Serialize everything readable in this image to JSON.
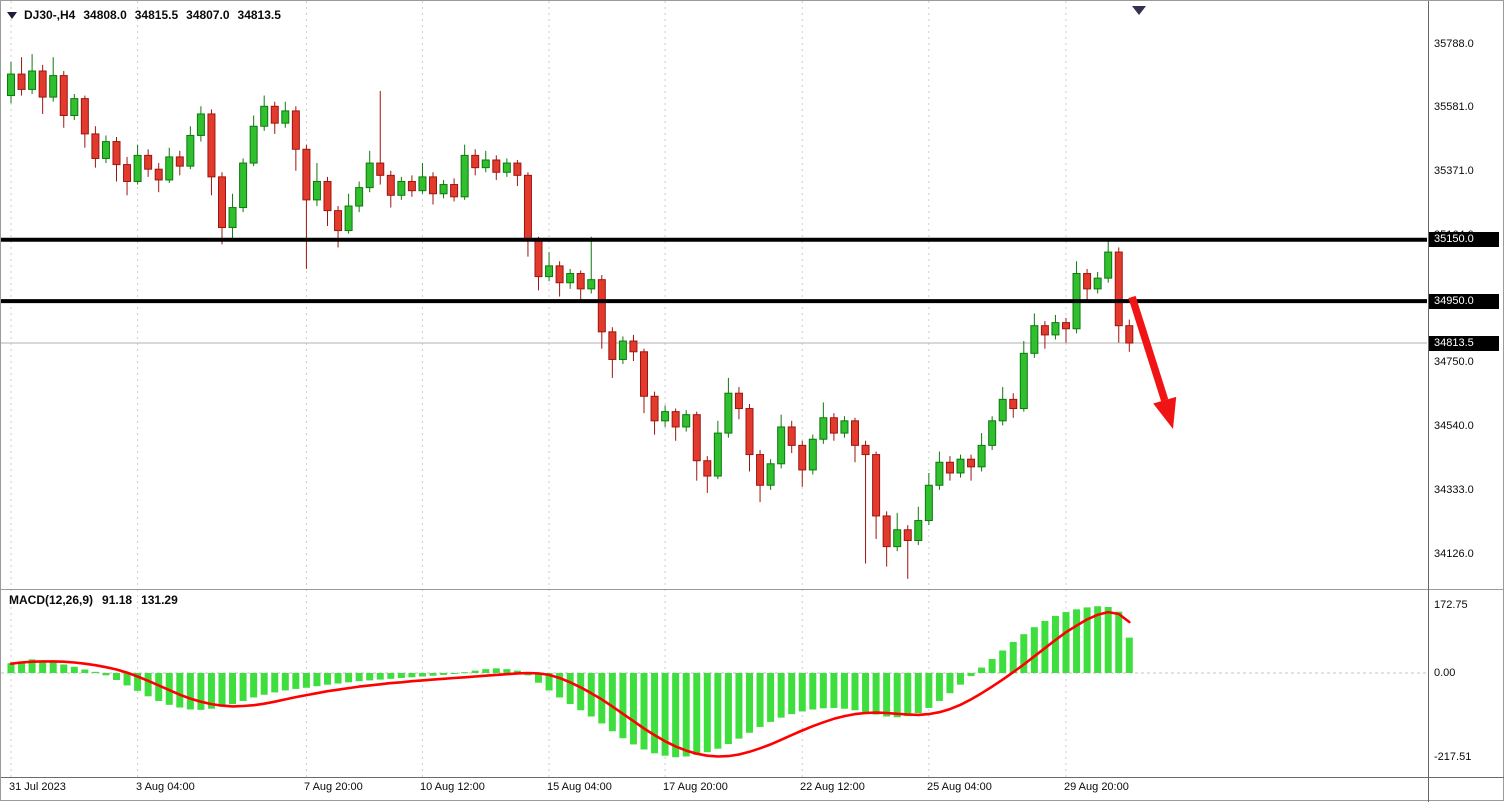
{
  "window": {
    "symbol_period": "DJ30-,H4",
    "ohlc_line": {
      "open": "34808.0",
      "high": "34815.5",
      "low": "34807.0",
      "close": "34813.5"
    }
  },
  "price_axis": {
    "ticks": [
      {
        "label": "35788.0",
        "price": 35788
      },
      {
        "label": "35581.0",
        "price": 35581
      },
      {
        "label": "35371.0",
        "price": 35371
      },
      {
        "label": "35164.0",
        "price": 35164
      },
      {
        "label": "34957.0",
        "price": 34957
      },
      {
        "label": "34750.0",
        "price": 34750
      },
      {
        "label": "34540.0",
        "price": 34540
      },
      {
        "label": "34333.0",
        "price": 34333
      },
      {
        "label": "34126.0",
        "price": 34126
      }
    ],
    "boxes": [
      {
        "label": "35150.0",
        "price": 35150,
        "kind": "level"
      },
      {
        "label": "34950.0",
        "price": 34950,
        "kind": "level"
      },
      {
        "label": "34813.5",
        "price": 34813.5,
        "kind": "current-price"
      }
    ]
  },
  "time_axis": {
    "ticks": [
      {
        "label": "31 Jul 2023",
        "bar": 0
      },
      {
        "label": "3 Aug 04:00",
        "bar": 12
      },
      {
        "label": "7 Aug 20:00",
        "bar": 28
      },
      {
        "label": "10 Aug 12:00",
        "bar": 39
      },
      {
        "label": "15 Aug 04:00",
        "bar": 51
      },
      {
        "label": "17 Aug 20:00",
        "bar": 62
      },
      {
        "label": "22 Aug 12:00",
        "bar": 75
      },
      {
        "label": "25 Aug 04:00",
        "bar": 87
      },
      {
        "label": "29 Aug 20:00",
        "bar": 100
      }
    ]
  },
  "macd_panel": {
    "label": "MACD(12,26,9)",
    "main_value": "91.18",
    "signal_value": "131.29",
    "axis": [
      {
        "label": "172.75",
        "value": 172.75
      },
      {
        "label": "0.00",
        "value": 0
      },
      {
        "label": "-217.51",
        "value": -217.51
      }
    ]
  },
  "colors": {
    "bull": "#2fbf2f",
    "bull_border": "#0c7a0c",
    "bear": "#e23b2e",
    "bear_border": "#9e150f",
    "histogram": "#3ede3e",
    "signal_line": "#ff0000",
    "level_line": "#000000",
    "current_price_line": "#b0b0b0",
    "arrow": "#f01414",
    "grid": "#cdcdcd",
    "separator": "#9a9a9a",
    "axis_line": "#666666",
    "box_bg": "#000000",
    "box_text": "#ffffff",
    "shift_marker": "#33334f"
  },
  "chart_data": {
    "type": "candlestick",
    "symbol": "DJ30-",
    "timeframe": "H4",
    "ylim": [
      34022,
      35902
    ],
    "horizontal_levels": [
      35150.0,
      34950.0
    ],
    "current_price": 34813.5,
    "candles_ohlc": [
      [
        35620,
        35730,
        35595,
        35690
      ],
      [
        35690,
        35745,
        35620,
        35640
      ],
      [
        35640,
        35755,
        35625,
        35700
      ],
      [
        35700,
        35720,
        35560,
        35615
      ],
      [
        35615,
        35745,
        35600,
        35685
      ],
      [
        35685,
        35700,
        35515,
        35555
      ],
      [
        35555,
        35625,
        35540,
        35610
      ],
      [
        35610,
        35620,
        35450,
        35495
      ],
      [
        35495,
        35520,
        35385,
        35415
      ],
      [
        35415,
        35490,
        35400,
        35470
      ],
      [
        35470,
        35485,
        35340,
        35395
      ],
      [
        35395,
        35420,
        35295,
        35340
      ],
      [
        35340,
        35460,
        35330,
        35425
      ],
      [
        35425,
        35445,
        35355,
        35380
      ],
      [
        35380,
        35400,
        35305,
        35345
      ],
      [
        35345,
        35450,
        35335,
        35420
      ],
      [
        35420,
        35440,
        35360,
        35390
      ],
      [
        35390,
        35520,
        35380,
        35490
      ],
      [
        35490,
        35585,
        35470,
        35560
      ],
      [
        35560,
        35575,
        35295,
        35355
      ],
      [
        35355,
        35370,
        35135,
        35190
      ],
      [
        35190,
        35300,
        35150,
        35255
      ],
      [
        35255,
        35415,
        35240,
        35400
      ],
      [
        35400,
        35555,
        35390,
        35520
      ],
      [
        35520,
        35620,
        35505,
        35585
      ],
      [
        35585,
        35600,
        35495,
        35530
      ],
      [
        35530,
        35600,
        35515,
        35570
      ],
      [
        35570,
        35585,
        35375,
        35445
      ],
      [
        35445,
        35460,
        35055,
        35280
      ],
      [
        35280,
        35400,
        35260,
        35340
      ],
      [
        35340,
        35355,
        35195,
        35245
      ],
      [
        35245,
        35260,
        35125,
        35180
      ],
      [
        35180,
        35300,
        35170,
        35260
      ],
      [
        35260,
        35340,
        35240,
        35320
      ],
      [
        35320,
        35440,
        35305,
        35400
      ],
      [
        35400,
        35635,
        35330,
        35360
      ],
      [
        35360,
        35375,
        35255,
        35295
      ],
      [
        35295,
        35355,
        35280,
        35340
      ],
      [
        35340,
        35360,
        35290,
        35310
      ],
      [
        35310,
        35400,
        35300,
        35355
      ],
      [
        35355,
        35370,
        35265,
        35300
      ],
      [
        35300,
        35345,
        35285,
        35330
      ],
      [
        35330,
        35350,
        35275,
        35290
      ],
      [
        35290,
        35460,
        35280,
        35425
      ],
      [
        35425,
        35445,
        35360,
        35385
      ],
      [
        35385,
        35440,
        35370,
        35410
      ],
      [
        35410,
        35425,
        35345,
        35370
      ],
      [
        35370,
        35415,
        35355,
        35400
      ],
      [
        35400,
        35410,
        35325,
        35360
      ],
      [
        35360,
        35370,
        35095,
        35150
      ],
      [
        35150,
        35160,
        34985,
        35030
      ],
      [
        35030,
        35110,
        35015,
        35065
      ],
      [
        35065,
        35080,
        34965,
        35010
      ],
      [
        35010,
        35055,
        34990,
        35040
      ],
      [
        35040,
        35050,
        34945,
        34990
      ],
      [
        34990,
        35160,
        34975,
        35020
      ],
      [
        35020,
        35035,
        34795,
        34850
      ],
      [
        34850,
        34865,
        34700,
        34760
      ],
      [
        34760,
        34835,
        34745,
        34820
      ],
      [
        34820,
        34840,
        34755,
        34785
      ],
      [
        34785,
        34795,
        34585,
        34640
      ],
      [
        34640,
        34655,
        34515,
        34560
      ],
      [
        34560,
        34610,
        34540,
        34590
      ],
      [
        34590,
        34600,
        34495,
        34540
      ],
      [
        34540,
        34595,
        34525,
        34580
      ],
      [
        34580,
        34590,
        34365,
        34430
      ],
      [
        34430,
        34445,
        34325,
        34380
      ],
      [
        34380,
        34560,
        34370,
        34520
      ],
      [
        34520,
        34700,
        34505,
        34650
      ],
      [
        34650,
        34670,
        34565,
        34600
      ],
      [
        34600,
        34615,
        34395,
        34450
      ],
      [
        34450,
        34465,
        34295,
        34350
      ],
      [
        34350,
        34435,
        34335,
        34420
      ],
      [
        34420,
        34580,
        34405,
        34540
      ],
      [
        34540,
        34560,
        34455,
        34480
      ],
      [
        34480,
        34495,
        34345,
        34400
      ],
      [
        34400,
        34515,
        34385,
        34500
      ],
      [
        34500,
        34620,
        34485,
        34570
      ],
      [
        34570,
        34585,
        34495,
        34520
      ],
      [
        34520,
        34575,
        34505,
        34560
      ],
      [
        34560,
        34570,
        34425,
        34480
      ],
      [
        34480,
        34495,
        34095,
        34450
      ],
      [
        34450,
        34460,
        34175,
        34250
      ],
      [
        34250,
        34265,
        34085,
        34150
      ],
      [
        34150,
        34260,
        34135,
        34205
      ],
      [
        34205,
        34220,
        34045,
        34170
      ],
      [
        34170,
        34280,
        34155,
        34235
      ],
      [
        34235,
        34390,
        34220,
        34350
      ],
      [
        34350,
        34460,
        34335,
        34425
      ],
      [
        34425,
        34445,
        34365,
        34390
      ],
      [
        34390,
        34450,
        34375,
        34435
      ],
      [
        34435,
        34450,
        34365,
        34410
      ],
      [
        34410,
        34520,
        34395,
        34480
      ],
      [
        34480,
        34575,
        34465,
        34560
      ],
      [
        34560,
        34670,
        34545,
        34630
      ],
      [
        34630,
        34650,
        34570,
        34600
      ],
      [
        34600,
        34820,
        34590,
        34780
      ],
      [
        34780,
        34910,
        34765,
        34870
      ],
      [
        34870,
        34885,
        34795,
        34840
      ],
      [
        34840,
        34905,
        34825,
        34880
      ],
      [
        34880,
        34895,
        34815,
        34860
      ],
      [
        34860,
        35080,
        34845,
        35040
      ],
      [
        35040,
        35055,
        34945,
        34990
      ],
      [
        34990,
        35045,
        34975,
        35025
      ],
      [
        35025,
        35155,
        35010,
        35110
      ],
      [
        35110,
        35125,
        34815,
        34870
      ],
      [
        34870,
        34890,
        34785,
        34813.5
      ]
    ],
    "macd": {
      "type": "macd",
      "params": [
        12,
        26,
        9
      ],
      "ylim": [
        -217.51,
        172.75
      ],
      "histogram": [
        25,
        30,
        35,
        32,
        28,
        22,
        16,
        9,
        3,
        -6,
        -18,
        -32,
        -46,
        -60,
        -72,
        -82,
        -89,
        -94,
        -95,
        -92,
        -87,
        -80,
        -72,
        -63,
        -56,
        -50,
        -45,
        -41,
        -38,
        -34,
        -30,
        -27,
        -24,
        -21,
        -19,
        -17,
        -15,
        -13,
        -11,
        -9,
        -7,
        -5,
        -2,
        2,
        6,
        10,
        12,
        10,
        6,
        -6,
        -25,
        -45,
        -63,
        -80,
        -96,
        -112,
        -130,
        -150,
        -168,
        -184,
        -197,
        -207,
        -213,
        -217,
        -215,
        -211,
        -204,
        -195,
        -183,
        -169,
        -154,
        -139,
        -126,
        -115,
        -106,
        -99,
        -94,
        -91,
        -90,
        -92,
        -96,
        -101,
        -107,
        -112,
        -114,
        -111,
        -103,
        -90,
        -72,
        -52,
        -30,
        -8,
        14,
        36,
        58,
        80,
        100,
        118,
        134,
        147,
        157,
        164,
        169,
        172,
        170,
        158,
        91.18
      ],
      "signal": [
        24,
        27,
        29,
        30,
        30,
        29,
        27,
        24,
        20,
        15,
        9,
        1,
        -9,
        -20,
        -32,
        -44,
        -56,
        -66,
        -74,
        -80,
        -84,
        -86,
        -85,
        -83,
        -79,
        -74,
        -68,
        -62,
        -57,
        -52,
        -47,
        -43,
        -39,
        -35,
        -32,
        -29,
        -26,
        -24,
        -21,
        -19,
        -17,
        -15,
        -13,
        -11,
        -9,
        -7,
        -5,
        -3,
        -1,
        0,
        -1,
        -5,
        -13,
        -24,
        -37,
        -52,
        -68,
        -86,
        -105,
        -124,
        -143,
        -160,
        -176,
        -189,
        -200,
        -208,
        -213,
        -215,
        -214,
        -210,
        -203,
        -194,
        -184,
        -172,
        -160,
        -148,
        -137,
        -127,
        -118,
        -111,
        -106,
        -103,
        -102,
        -103,
        -105,
        -107,
        -108,
        -106,
        -101,
        -93,
        -82,
        -68,
        -52,
        -35,
        -17,
        2,
        22,
        43,
        64,
        85,
        105,
        122,
        138,
        150,
        157,
        152,
        131.29
      ]
    }
  },
  "annotations": {
    "red_arrow": {
      "direction": "down-right",
      "color": "#f01414"
    }
  }
}
